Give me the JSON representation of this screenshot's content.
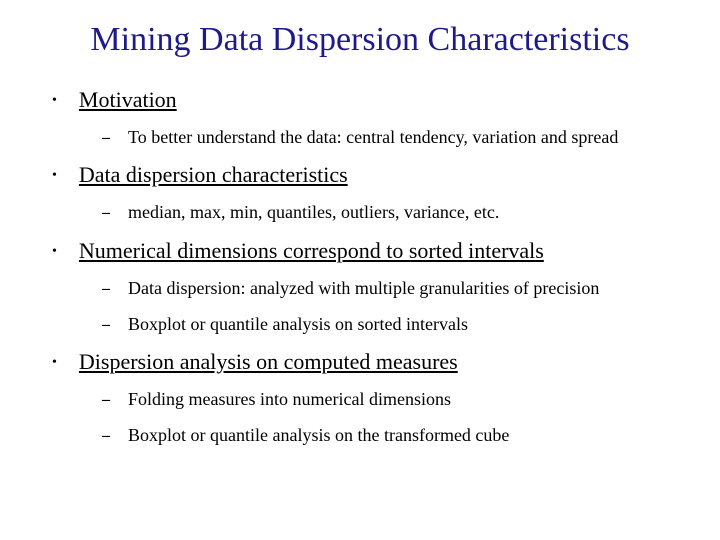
{
  "title": "Mining Data Dispersion Characteristics",
  "title_color": "#1f1a8a",
  "title_fontsize": 34,
  "body_fontsize_main": 22,
  "body_fontsize_sub": 18,
  "text_color": "#000000",
  "background_color": "#ffffff",
  "bullets": [
    {
      "label": "Motivation",
      "subs": [
        "To better understand the data: central tendency, variation and spread"
      ]
    },
    {
      "label": "Data dispersion characteristics",
      "subs": [
        "median, max, min, quantiles, outliers, variance, etc."
      ]
    },
    {
      "label": "Numerical dimensions correspond to sorted intervals",
      "subs": [
        "Data dispersion: analyzed with multiple granularities of precision",
        "Boxplot or quantile analysis on sorted intervals"
      ]
    },
    {
      "label": "Dispersion analysis on computed measures",
      "subs": [
        "Folding measures into numerical dimensions",
        "Boxplot or quantile analysis on the transformed cube"
      ]
    }
  ]
}
